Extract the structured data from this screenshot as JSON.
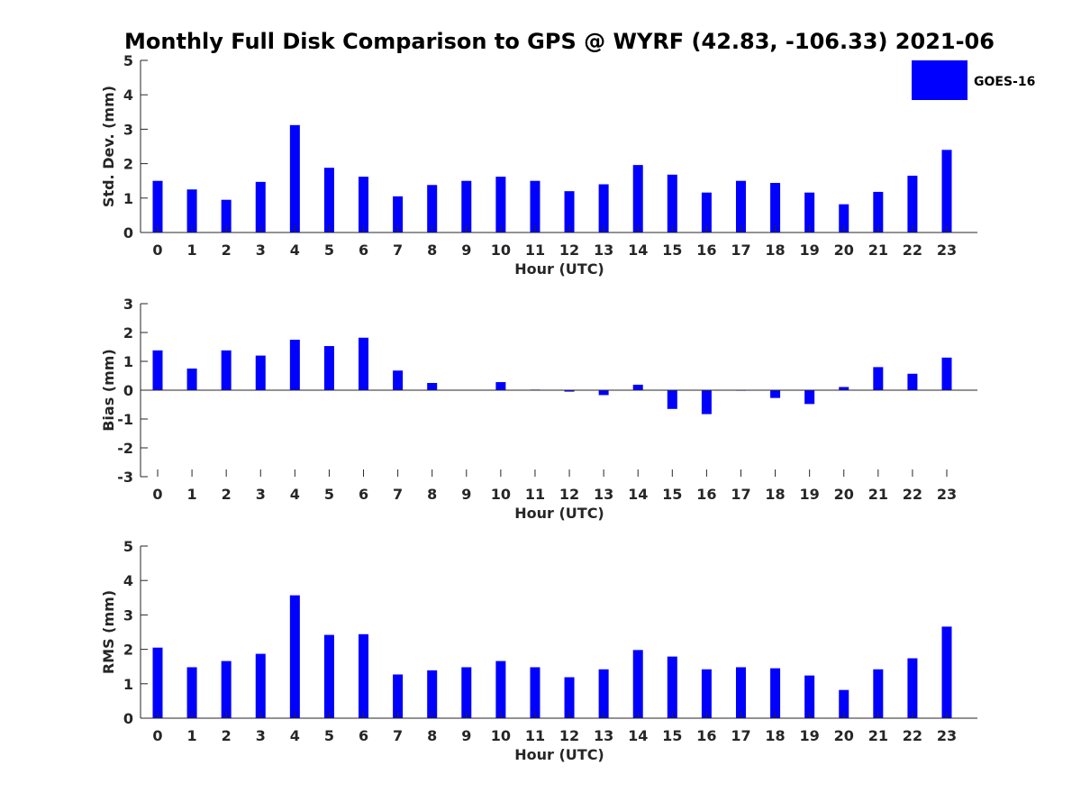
{
  "title": "Monthly Full Disk Comparison to GPS @ WYRF (42.83, -106.33) 2021-06",
  "legend": {
    "label": "GOES-16",
    "color": "#0000ff"
  },
  "colors": {
    "bar": "#0000ff",
    "axis": "#262626",
    "background": "#ffffff"
  },
  "chart_data": [
    {
      "type": "bar",
      "title": "Monthly Full Disk Comparison to GPS @ WYRF (42.83, -106.33) 2021-06",
      "xlabel": "Hour (UTC)",
      "ylabel": "Std. Dev. (mm)",
      "ylim": [
        0,
        5
      ],
      "yticks": [
        "0",
        "1",
        "2",
        "3",
        "4",
        "5"
      ],
      "categories": [
        "0",
        "1",
        "2",
        "3",
        "4",
        "5",
        "6",
        "7",
        "8",
        "9",
        "10",
        "11",
        "12",
        "13",
        "14",
        "15",
        "16",
        "17",
        "18",
        "19",
        "20",
        "21",
        "22",
        "23"
      ],
      "series": [
        {
          "name": "GOES-16",
          "values": [
            1.5,
            1.25,
            0.95,
            1.47,
            3.12,
            1.88,
            1.62,
            1.05,
            1.38,
            1.5,
            1.62,
            1.5,
            1.2,
            1.4,
            1.96,
            1.68,
            1.16,
            1.5,
            1.44,
            1.16,
            0.82,
            1.18,
            1.65,
            2.4
          ]
        }
      ]
    },
    {
      "type": "bar",
      "xlabel": "Hour (UTC)",
      "ylabel": "Bias (mm)",
      "ylim": [
        -3,
        3
      ],
      "yticks": [
        "-3",
        "-2",
        "-1",
        "0",
        "1",
        "2",
        "3"
      ],
      "categories": [
        "0",
        "1",
        "2",
        "3",
        "4",
        "5",
        "6",
        "7",
        "8",
        "9",
        "10",
        "11",
        "12",
        "13",
        "14",
        "15",
        "16",
        "17",
        "18",
        "19",
        "20",
        "21",
        "22",
        "23"
      ],
      "series": [
        {
          "name": "GOES-16",
          "values": [
            1.38,
            0.75,
            1.38,
            1.2,
            1.75,
            1.53,
            1.82,
            0.68,
            0.25,
            0.01,
            0.28,
            0.02,
            -0.05,
            -0.17,
            0.19,
            -0.65,
            -0.83,
            -0.01,
            -0.27,
            -0.48,
            0.11,
            0.8,
            0.57,
            1.13
          ]
        }
      ]
    },
    {
      "type": "bar",
      "xlabel": "Hour (UTC)",
      "ylabel": "RMS (mm)",
      "ylim": [
        0,
        5
      ],
      "yticks": [
        "0",
        "1",
        "2",
        "3",
        "4",
        "5"
      ],
      "categories": [
        "0",
        "1",
        "2",
        "3",
        "4",
        "5",
        "6",
        "7",
        "8",
        "9",
        "10",
        "11",
        "12",
        "13",
        "14",
        "15",
        "16",
        "17",
        "18",
        "19",
        "20",
        "21",
        "22",
        "23"
      ],
      "series": [
        {
          "name": "GOES-16",
          "values": [
            2.05,
            1.48,
            1.66,
            1.87,
            3.57,
            2.42,
            2.44,
            1.27,
            1.39,
            1.48,
            1.66,
            1.48,
            1.19,
            1.42,
            1.98,
            1.79,
            1.42,
            1.48,
            1.45,
            1.24,
            0.82,
            1.42,
            1.74,
            2.66
          ]
        }
      ]
    }
  ]
}
